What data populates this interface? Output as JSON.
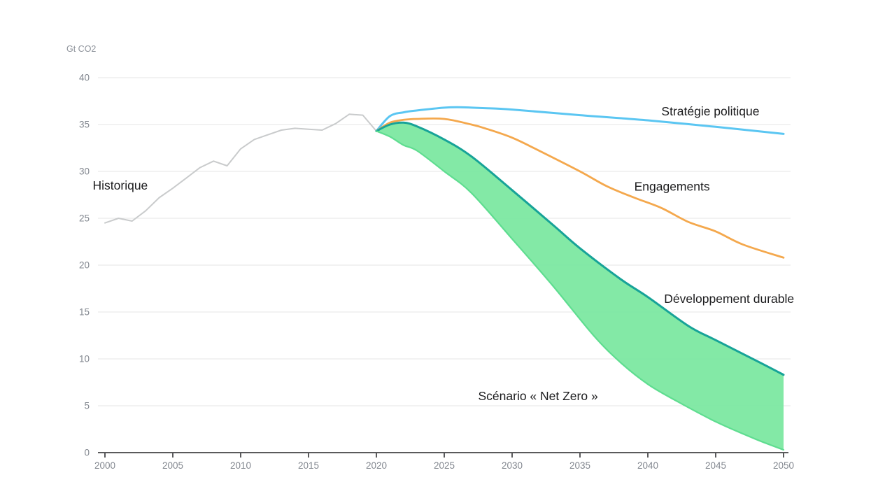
{
  "chart_data": {
    "type": "line",
    "title": "",
    "xlabel": "",
    "ylabel": "Gt CO2",
    "xlim": [
      2000,
      2050
    ],
    "ylim": [
      0,
      40
    ],
    "x_ticks": [
      2000,
      2005,
      2010,
      2015,
      2020,
      2025,
      2030,
      2035,
      2040,
      2045,
      2050
    ],
    "y_ticks": [
      0,
      5,
      10,
      15,
      20,
      25,
      30,
      35,
      40
    ],
    "grid": "horizontal",
    "legend_position": "inline-annotations",
    "colors": {
      "background": "#FFFFFF",
      "grid": "#E9EAEB",
      "axis": "#5A5A5C",
      "tick_text": "#82878F",
      "unit_text": "#8E939B",
      "annotation_text": "#1C1C1E",
      "historical": "#C9CBCC",
      "steps_blue": "#5BC6F2",
      "pledges_orange": "#F4A84D",
      "sds_teal": "#17A398",
      "band_fill": "#7CE8A1",
      "band_lower_edge": "#5FDD90"
    },
    "series": [
      {
        "name": "Historique",
        "color": "#C9CBCC",
        "width": 2,
        "smooth": false,
        "x": [
          2000,
          2001,
          2002,
          2003,
          2004,
          2005,
          2006,
          2007,
          2008,
          2009,
          2010,
          2011,
          2012,
          2013,
          2014,
          2015,
          2016,
          2017,
          2018,
          2019,
          2020
        ],
        "values": [
          24.5,
          25.0,
          24.7,
          25.8,
          27.2,
          28.2,
          29.3,
          30.4,
          31.1,
          30.6,
          32.4,
          33.4,
          33.9,
          34.4,
          34.6,
          34.5,
          34.4,
          35.1,
          36.1,
          36.0,
          34.3
        ]
      },
      {
        "name": "Stratégie politique",
        "color": "#5BC6F2",
        "width": 3,
        "smooth": true,
        "x": [
          2020,
          2021,
          2022,
          2023,
          2025,
          2026,
          2028,
          2030,
          2035,
          2040,
          2045,
          2050
        ],
        "values": [
          34.3,
          35.9,
          36.3,
          36.5,
          36.8,
          36.85,
          36.75,
          36.6,
          36.0,
          35.45,
          34.75,
          34.0
        ]
      },
      {
        "name": "Engagements",
        "color": "#F4A84D",
        "width": 2.8,
        "smooth": true,
        "x": [
          2020,
          2021,
          2022,
          2023,
          2025,
          2027,
          2028,
          2030,
          2032,
          2035,
          2037,
          2039,
          2041,
          2043,
          2045,
          2047,
          2050
        ],
        "values": [
          34.3,
          35.2,
          35.5,
          35.6,
          35.6,
          35.0,
          34.6,
          33.6,
          32.2,
          30.0,
          28.4,
          27.2,
          26.1,
          24.6,
          23.6,
          22.2,
          20.8
        ]
      },
      {
        "name": "Développement durable",
        "color": "#17A398",
        "width": 3,
        "smooth": true,
        "x": [
          2020,
          2021,
          2022,
          2023,
          2025,
          2027,
          2030,
          2033,
          2035,
          2038,
          2040,
          2043,
          2045,
          2048,
          2050
        ],
        "values": [
          34.3,
          35.0,
          35.2,
          34.8,
          33.4,
          31.6,
          28.0,
          24.3,
          21.8,
          18.5,
          16.6,
          13.5,
          12.0,
          9.8,
          8.3
        ]
      },
      {
        "name": "Scénario « Net Zero »",
        "color": "#5FDD90",
        "width": 2.2,
        "smooth": true,
        "x": [
          2020,
          2021,
          2022,
          2023,
          2025,
          2027,
          2030,
          2033,
          2036,
          2038,
          2040,
          2042,
          2045,
          2048,
          2050
        ],
        "values": [
          34.3,
          33.7,
          32.8,
          32.2,
          30.0,
          27.7,
          22.8,
          17.8,
          12.5,
          9.6,
          7.3,
          5.6,
          3.3,
          1.4,
          0.3
        ]
      }
    ],
    "band": {
      "upper_series": "Développement durable",
      "lower_series": "Scénario « Net Zero »",
      "fill": "#7CE8A1",
      "fill_opacity": 0.95
    },
    "annotations": [
      {
        "text": "Historique",
        "year": 1999.1,
        "value": 28.5,
        "anchor": "start"
      },
      {
        "text": "Stratégie politique",
        "year": 2041.0,
        "value": 36.4,
        "anchor": "start"
      },
      {
        "text": "Engagements",
        "year": 2039.0,
        "value": 28.4,
        "anchor": "start"
      },
      {
        "text": "Développement durable",
        "year": 2041.2,
        "value": 16.4,
        "anchor": "start"
      },
      {
        "text": "Scénario « Net Zero »",
        "year": 2027.5,
        "value": 6.05,
        "anchor": "start"
      }
    ]
  }
}
